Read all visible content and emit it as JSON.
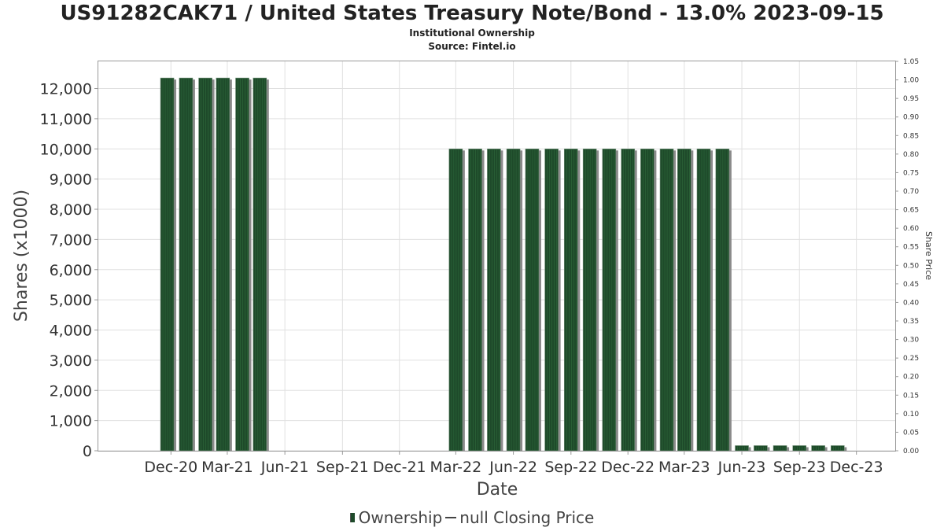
{
  "header": {
    "title": "US91282CAK71 / United States Treasury Note/Bond - 13.0% 2023-09-15",
    "subtitle": "Institutional Ownership",
    "source": "Source: Fintel.io"
  },
  "legend": {
    "ownership_label": "Ownership",
    "price_label": "null Closing Price"
  },
  "colors": {
    "bar_fill": "#1e4a2a",
    "bar_shadow": "#8a8a8a",
    "grid": "#e0e0e0",
    "text": "#333333"
  },
  "chart_data": {
    "type": "bar",
    "title": "US91282CAK71 / United States Treasury Note/Bond - 13.0% 2023-09-15",
    "xlabel": "Date",
    "ylabel": "Shares (x1000)",
    "ylabel_right": "Share Price",
    "x_tick_labels": [
      "Dec-20",
      "Mar-21",
      "Jun-21",
      "Sep-21",
      "Dec-21",
      "Mar-22",
      "Jun-22",
      "Sep-22",
      "Dec-22",
      "Mar-23",
      "Jun-23",
      "Sep-23",
      "Dec-23"
    ],
    "y_ticks": [
      "0",
      "1,000",
      "2,000",
      "3,000",
      "4,000",
      "5,000",
      "6,000",
      "7,000",
      "8,000",
      "9,000",
      "10,000",
      "11,000",
      "12,000"
    ],
    "y_right_ticks": [
      "0.00",
      "0.05",
      "0.10",
      "0.15",
      "0.20",
      "0.25",
      "0.30",
      "0.35",
      "0.40",
      "0.45",
      "0.50",
      "0.55",
      "0.60",
      "0.65",
      "0.70",
      "0.75",
      "0.80",
      "0.85",
      "0.90",
      "0.95",
      "1.00",
      "1.05"
    ],
    "ylim": [
      0,
      12900
    ],
    "y_right_lim": [
      0,
      1.05
    ],
    "grid": true,
    "legend_position": "bottom",
    "series": [
      {
        "name": "Ownership",
        "points": [
          {
            "date": "2020-11-25",
            "value": 12350
          },
          {
            "date": "2020-12-25",
            "value": 12350
          },
          {
            "date": "2021-01-25",
            "value": 12350
          },
          {
            "date": "2021-02-22",
            "value": 12350
          },
          {
            "date": "2021-03-25",
            "value": 12350
          },
          {
            "date": "2021-04-22",
            "value": 12350
          },
          {
            "date": "2022-03-01",
            "value": 10000
          },
          {
            "date": "2022-04-01",
            "value": 10000
          },
          {
            "date": "2022-05-01",
            "value": 10000
          },
          {
            "date": "2022-06-01",
            "value": 10000
          },
          {
            "date": "2022-07-01",
            "value": 10000
          },
          {
            "date": "2022-08-01",
            "value": 10000
          },
          {
            "date": "2022-09-01",
            "value": 10000
          },
          {
            "date": "2022-10-01",
            "value": 10000
          },
          {
            "date": "2022-11-01",
            "value": 10000
          },
          {
            "date": "2022-12-01",
            "value": 10000
          },
          {
            "date": "2023-01-01",
            "value": 10000
          },
          {
            "date": "2023-02-01",
            "value": 10000
          },
          {
            "date": "2023-03-01",
            "value": 10000
          },
          {
            "date": "2023-04-01",
            "value": 10000
          },
          {
            "date": "2023-05-01",
            "value": 10000
          },
          {
            "date": "2023-06-01",
            "value": 170
          },
          {
            "date": "2023-07-01",
            "value": 170
          },
          {
            "date": "2023-08-01",
            "value": 170
          },
          {
            "date": "2023-09-01",
            "value": 170
          },
          {
            "date": "2023-10-01",
            "value": 170
          },
          {
            "date": "2023-11-01",
            "value": 170
          }
        ]
      }
    ]
  }
}
